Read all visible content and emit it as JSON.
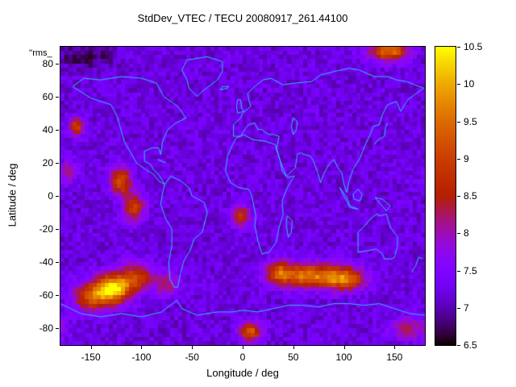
{
  "key_label": "''rms_",
  "chart_data": {
    "type": "heatmap",
    "title": "StdDev_VTEC / TECU 20080917_261.44100",
    "xlabel": "Longitude / deg",
    "ylabel": "Latitude / deg",
    "xlim": [
      -180,
      180
    ],
    "ylim": [
      -90,
      90
    ],
    "zlim": [
      6.5,
      10.5
    ],
    "z_units": "TECU",
    "x_ticks": [
      -150,
      -100,
      -50,
      0,
      50,
      100,
      150
    ],
    "y_ticks": [
      80,
      60,
      40,
      20,
      0,
      -20,
      -40,
      -60,
      -80
    ],
    "colorbar_ticks": [
      6.5,
      7,
      7.5,
      8,
      8.5,
      9,
      9.5,
      10,
      10.5
    ],
    "legend_position": "colorbar-right",
    "grid": false,
    "palette": "gnuplot rgbformulae 7,5,15 (dark purple -> violet -> magenta -> red -> orange -> yellow)",
    "background_value": 7.2,
    "noise_amplitude": 0.25,
    "cell_size_lon_deg": 4,
    "cell_size_lat_deg": 2.5,
    "features": [
      {
        "name": "south-pacific-peak",
        "lon": -128,
        "lat": -56,
        "peak": 10.5,
        "sigma_lon": 12,
        "sigma_lat": 6
      },
      {
        "name": "south-pacific-west",
        "lon": -150,
        "lat": -61,
        "peak": 9.0,
        "sigma_lon": 12,
        "sigma_lat": 6
      },
      {
        "name": "south-pacific-east",
        "lon": -105,
        "lat": -49,
        "peak": 8.9,
        "sigma_lon": 11,
        "sigma_lat": 6
      },
      {
        "name": "south-america-tip",
        "lon": -76,
        "lat": -53,
        "peak": 8.3,
        "sigma_lon": 9,
        "sigma_lat": 5
      },
      {
        "name": "indian-ocean-band-west",
        "lon": 35,
        "lat": -46,
        "peak": 8.7,
        "sigma_lon": 9,
        "sigma_lat": 5
      },
      {
        "name": "indian-ocean-band-center",
        "lon": 63,
        "lat": -48,
        "peak": 9.5,
        "sigma_lon": 20,
        "sigma_lat": 5
      },
      {
        "name": "indian-ocean-band-east",
        "lon": 100,
        "lat": -50,
        "peak": 9.4,
        "sigma_lon": 15,
        "sigma_lat": 5
      },
      {
        "name": "east-pacific-north",
        "lon": -120,
        "lat": 9,
        "peak": 9.2,
        "sigma_lon": 7,
        "sigma_lat": 6
      },
      {
        "name": "east-pacific-south",
        "lon": -107,
        "lat": -7,
        "peak": 9.0,
        "sigma_lon": 7,
        "sigma_lat": 6
      },
      {
        "name": "north-pacific-spot",
        "lon": -164,
        "lat": 42,
        "peak": 9.0,
        "sigma_lon": 5,
        "sigma_lat": 4
      },
      {
        "name": "central-pacific-mild",
        "lon": -172,
        "lat": 15,
        "peak": 8.1,
        "sigma_lon": 6,
        "sigma_lat": 5
      },
      {
        "name": "south-atlantic-spot",
        "lon": -2,
        "lat": -12,
        "peak": 8.8,
        "sigma_lon": 6,
        "sigma_lat": 5
      },
      {
        "name": "arctic-east-spot",
        "lon": 145,
        "lat": 87,
        "peak": 9.5,
        "sigma_lon": 14,
        "sigma_lat": 4
      },
      {
        "name": "antarctic-center-spot",
        "lon": 8,
        "lat": -82,
        "peak": 9.2,
        "sigma_lon": 8,
        "sigma_lat": 4
      },
      {
        "name": "antarctic-east-mild",
        "lon": 165,
        "lat": -80,
        "peak": 8.2,
        "sigma_lon": 14,
        "sigma_lat": 5
      },
      {
        "name": "arctic-west-cold",
        "lon": -155,
        "lat": 84,
        "peak": 6.7,
        "sigma_lon": 20,
        "sigma_lat": 5
      }
    ],
    "coastline_color": "#33bbff",
    "coastlines": [
      [
        [
          -168,
          66
        ],
        [
          -150,
          59
        ],
        [
          -130,
          55
        ],
        [
          -124,
          48
        ],
        [
          -117,
          33
        ],
        [
          -105,
          20
        ],
        [
          -96,
          16
        ],
        [
          -88,
          13
        ],
        [
          -83,
          9
        ],
        [
          -77,
          7
        ],
        [
          -82,
          12
        ],
        [
          -88,
          16
        ],
        [
          -91,
          19
        ],
        [
          -97,
          21
        ],
        [
          -97,
          27
        ],
        [
          -89,
          29
        ],
        [
          -83,
          29
        ],
        [
          -81,
          25
        ],
        [
          -79,
          33
        ],
        [
          -74,
          40
        ],
        [
          -66,
          44
        ],
        [
          -56,
          47
        ],
        [
          -64,
          54
        ],
        [
          -78,
          60
        ],
        [
          -85,
          68
        ],
        [
          -100,
          71
        ],
        [
          -120,
          72
        ],
        [
          -140,
          70
        ],
        [
          -157,
          71
        ],
        [
          -168,
          66
        ]
      ],
      [
        [
          -77,
          7
        ],
        [
          -79,
          2
        ],
        [
          -81,
          -5
        ],
        [
          -76,
          -14
        ],
        [
          -70,
          -20
        ],
        [
          -70,
          -30
        ],
        [
          -73,
          -40
        ],
        [
          -72,
          -50
        ],
        [
          -68,
          -55
        ],
        [
          -64,
          -55
        ],
        [
          -62,
          -48
        ],
        [
          -58,
          -39
        ],
        [
          -52,
          -33
        ],
        [
          -48,
          -26
        ],
        [
          -40,
          -22
        ],
        [
          -35,
          -10
        ],
        [
          -38,
          -4
        ],
        [
          -50,
          0
        ],
        [
          -53,
          5
        ],
        [
          -61,
          9
        ],
        [
          -71,
          12
        ],
        [
          -77,
          7
        ]
      ],
      [
        [
          -45,
          60
        ],
        [
          -53,
          65
        ],
        [
          -55,
          70
        ],
        [
          -60,
          76
        ],
        [
          -55,
          82
        ],
        [
          -35,
          84
        ],
        [
          -20,
          81
        ],
        [
          -20,
          75
        ],
        [
          -25,
          70
        ],
        [
          -40,
          63
        ],
        [
          -45,
          60
        ]
      ],
      [
        [
          -22,
          64
        ],
        [
          -15,
          65
        ],
        [
          -14,
          66
        ],
        [
          -20,
          66
        ],
        [
          -22,
          64
        ]
      ],
      [
        [
          -6,
          35
        ],
        [
          -10,
          31
        ],
        [
          -15,
          24
        ],
        [
          -17,
          15
        ],
        [
          -12,
          8
        ],
        [
          -4,
          5
        ],
        [
          6,
          4
        ],
        [
          9,
          0
        ],
        [
          13,
          -12
        ],
        [
          12,
          -18
        ],
        [
          15,
          -27
        ],
        [
          19,
          -35
        ],
        [
          26,
          -34
        ],
        [
          33,
          -28
        ],
        [
          36,
          -19
        ],
        [
          40,
          -11
        ],
        [
          39,
          -3
        ],
        [
          44,
          5
        ],
        [
          51,
          12
        ],
        [
          44,
          11
        ],
        [
          39,
          15
        ],
        [
          37,
          21
        ],
        [
          34,
          28
        ],
        [
          32,
          31
        ],
        [
          22,
          33
        ],
        [
          10,
          34
        ],
        [
          1,
          37
        ],
        [
          -6,
          35
        ]
      ],
      [
        [
          -9,
          36
        ],
        [
          -9,
          43
        ],
        [
          -2,
          47
        ],
        [
          0,
          50
        ],
        [
          8,
          54
        ],
        [
          6,
          58
        ],
        [
          5,
          62
        ],
        [
          12,
          66
        ],
        [
          20,
          70
        ],
        [
          28,
          71
        ],
        [
          40,
          67
        ],
        [
          50,
          68
        ],
        [
          68,
          69
        ],
        [
          77,
          73
        ],
        [
          90,
          75
        ],
        [
          105,
          77
        ],
        [
          115,
          76
        ],
        [
          130,
          72
        ],
        [
          143,
          72
        ],
        [
          152,
          70
        ],
        [
          162,
          69
        ],
        [
          170,
          67
        ],
        [
          179,
          65
        ],
        [
          172,
          62
        ],
        [
          163,
          58
        ],
        [
          156,
          51
        ],
        [
          152,
          57
        ],
        [
          143,
          55
        ],
        [
          138,
          49
        ],
        [
          135,
          43
        ],
        [
          129,
          42
        ],
        [
          126,
          37
        ],
        [
          122,
          32
        ],
        [
          116,
          23
        ],
        [
          109,
          16
        ],
        [
          105,
          9
        ],
        [
          103,
          2
        ],
        [
          100,
          7
        ],
        [
          98,
          14
        ],
        [
          94,
          17
        ],
        [
          90,
          22
        ],
        [
          85,
          19
        ],
        [
          80,
          13
        ],
        [
          77,
          8
        ],
        [
          74,
          14
        ],
        [
          70,
          21
        ],
        [
          67,
          24
        ],
        [
          61,
          25
        ],
        [
          57,
          26
        ],
        [
          54,
          25
        ],
        [
          52,
          17
        ],
        [
          45,
          13
        ],
        [
          43,
          12
        ],
        [
          39,
          18
        ],
        [
          35,
          25
        ],
        [
          33,
          28
        ],
        [
          35,
          33
        ],
        [
          36,
          36
        ],
        [
          31,
          37
        ],
        [
          27,
          37
        ],
        [
          23,
          38
        ],
        [
          19,
          40
        ],
        [
          15,
          40
        ],
        [
          12,
          44
        ],
        [
          6,
          43
        ],
        [
          3,
          41
        ],
        [
          -2,
          36
        ],
        [
          -9,
          36
        ]
      ],
      [
        [
          -5,
          50
        ],
        [
          -6,
          54
        ],
        [
          -5,
          58
        ],
        [
          -2,
          58
        ],
        [
          -1,
          53
        ],
        [
          1,
          51
        ],
        [
          -5,
          50
        ]
      ],
      [
        [
          50,
          47
        ],
        [
          54,
          45
        ],
        [
          53,
          40
        ],
        [
          50,
          37
        ],
        [
          48,
          42
        ],
        [
          50,
          47
        ]
      ],
      [
        [
          130,
          31
        ],
        [
          134,
          34
        ],
        [
          140,
          36
        ],
        [
          141,
          41
        ],
        [
          143,
          44
        ]
      ],
      [
        [
          44,
          -12
        ],
        [
          49,
          -15
        ],
        [
          48,
          -22
        ],
        [
          45,
          -25
        ],
        [
          43,
          -17
        ],
        [
          44,
          -12
        ]
      ],
      [
        [
          109,
          1
        ],
        [
          114,
          4
        ],
        [
          118,
          1
        ],
        [
          116,
          -3
        ],
        [
          110,
          -2
        ],
        [
          109,
          1
        ]
      ],
      [
        [
          96,
          5
        ],
        [
          103,
          -1
        ],
        [
          106,
          -6
        ],
        [
          114,
          -8
        ],
        [
          106,
          -7
        ],
        [
          99,
          1
        ],
        [
          96,
          5
        ]
      ],
      [
        [
          131,
          -1
        ],
        [
          138,
          -2
        ],
        [
          146,
          -6
        ],
        [
          142,
          -9
        ],
        [
          135,
          -4
        ],
        [
          131,
          -1
        ]
      ],
      [
        [
          114,
          -22
        ],
        [
          114,
          -34
        ],
        [
          124,
          -33
        ],
        [
          132,
          -32
        ],
        [
          138,
          -35
        ],
        [
          140,
          -38
        ],
        [
          147,
          -38
        ],
        [
          150,
          -37
        ],
        [
          153,
          -30
        ],
        [
          153,
          -25
        ],
        [
          146,
          -19
        ],
        [
          142,
          -11
        ],
        [
          136,
          -12
        ],
        [
          132,
          -11
        ],
        [
          126,
          -14
        ],
        [
          122,
          -17
        ],
        [
          114,
          -22
        ]
      ],
      [
        [
          167,
          -46
        ],
        [
          171,
          -42
        ],
        [
          174,
          -37
        ],
        [
          178,
          -38
        ]
      ],
      [
        [
          -84,
          22
        ],
        [
          -76,
          20
        ]
      ],
      [
        [
          -180,
          -65
        ],
        [
          -160,
          -71
        ],
        [
          -140,
          -73
        ],
        [
          -120,
          -71
        ],
        [
          -100,
          -73
        ],
        [
          -80,
          -70
        ],
        [
          -65,
          -63
        ],
        [
          -60,
          -68
        ],
        [
          -45,
          -72
        ],
        [
          -25,
          -70
        ],
        [
          -10,
          -70
        ],
        [
          0,
          -69
        ],
        [
          15,
          -70
        ],
        [
          30,
          -68
        ],
        [
          45,
          -66
        ],
        [
          60,
          -66
        ],
        [
          75,
          -67
        ],
        [
          90,
          -65
        ],
        [
          105,
          -65
        ],
        [
          120,
          -66
        ],
        [
          135,
          -65
        ],
        [
          150,
          -68
        ],
        [
          165,
          -71
        ],
        [
          180,
          -72
        ]
      ]
    ]
  }
}
